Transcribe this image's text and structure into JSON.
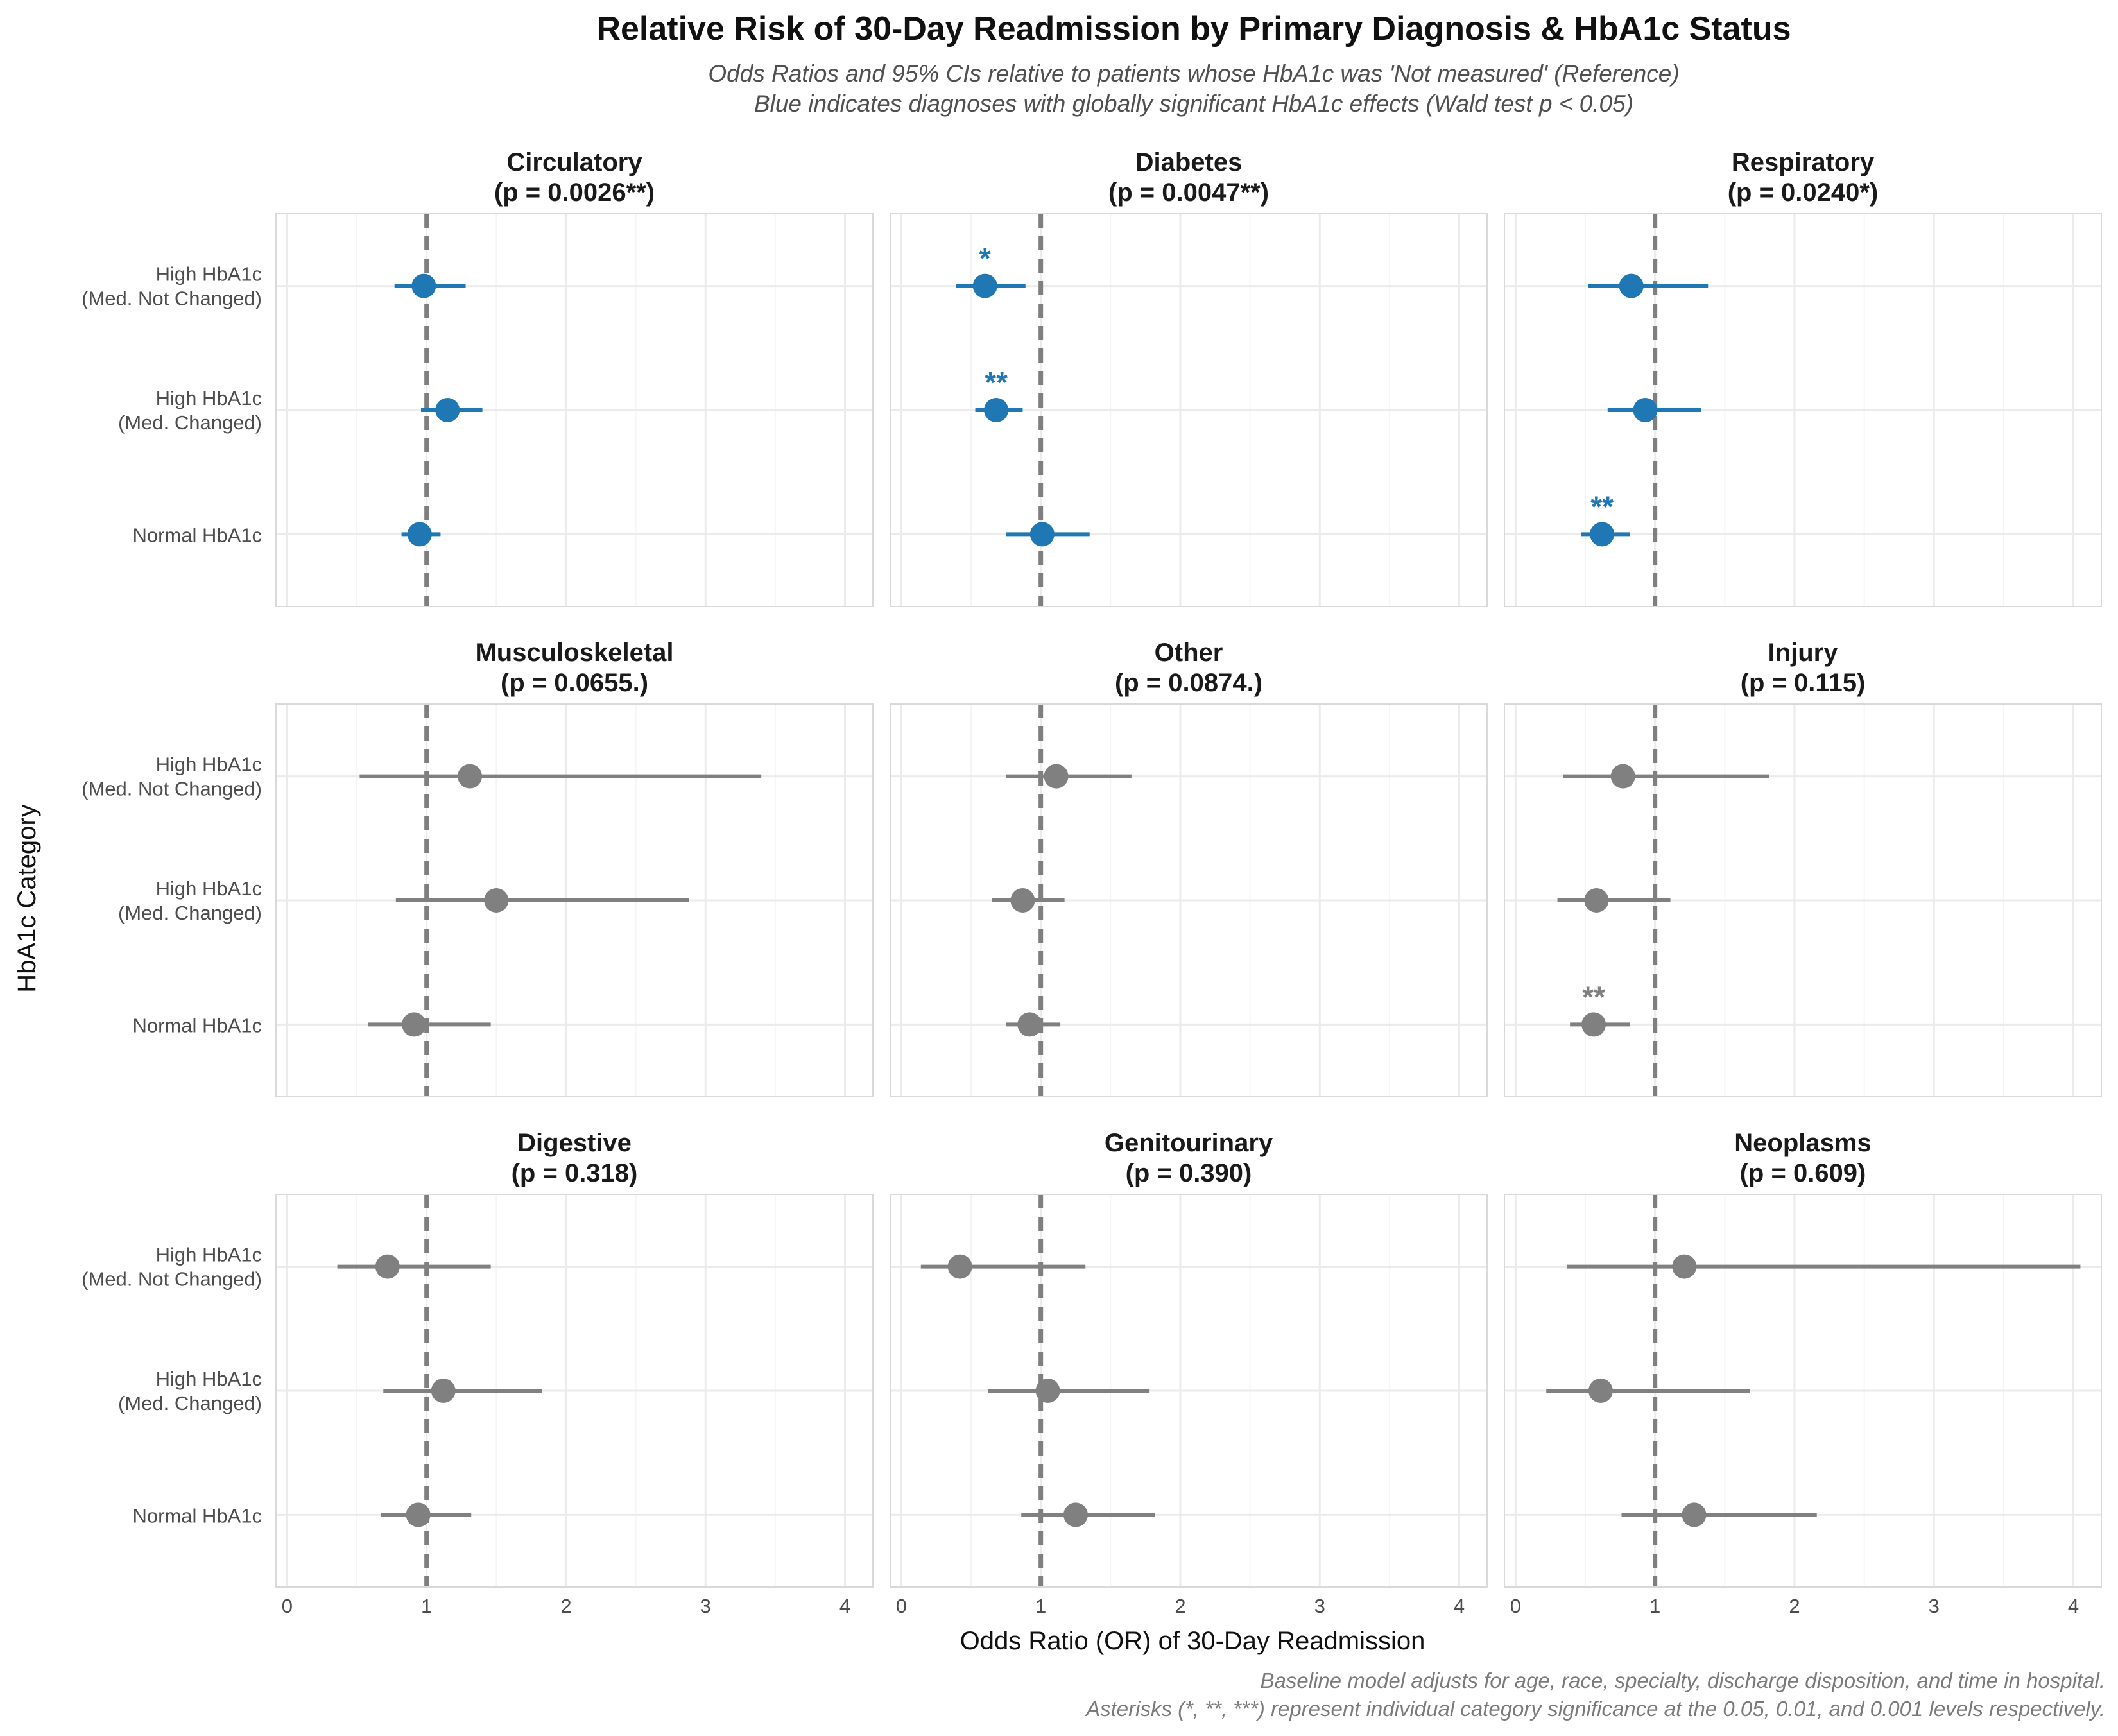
{
  "chart_data": {
    "type": "scatter",
    "title": "Relative Risk of 30-Day Readmission by Primary Diagnosis & HbA1c Status",
    "subtitle_lines": [
      "Odds Ratios and 95% CIs relative to patients whose HbA1c was 'Not measured' (Reference)",
      "Blue indicates diagnoses with globally significant HbA1c effects (Wald test p < 0.05)"
    ],
    "xlabel": "Odds Ratio (OR) of 30-Day Readmission",
    "ylabel": "HbA1c Category",
    "caption_lines": [
      "Baseline model adjusts for age, race, specialty, discharge disposition, and time in hospital.",
      "Asterisks (*, **, ***) represent individual category significance at the 0.05, 0.01, and 0.001 levels respectively."
    ],
    "xlim": [
      -0.08,
      4.2
    ],
    "x_ticks": [
      0,
      1,
      2,
      3,
      4
    ],
    "x_tick_labels": [
      "0",
      "1",
      "2",
      "3",
      "4"
    ],
    "reference_line": 1,
    "grid": true,
    "colors": {
      "significant": "#1f77b4",
      "not_significant": "#808080",
      "reference": "#7f7f7f",
      "grid": "#ebebeb",
      "panel_border": "#d9d9d9"
    },
    "categories": [
      [
        "High HbA1c",
        "(Med. Not Changed)"
      ],
      [
        "High HbA1c",
        "(Med. Changed)"
      ],
      [
        "Normal HbA1c"
      ]
    ],
    "panels": [
      {
        "diagnosis": "Circulatory",
        "p_label": "(p = 0.0026**)",
        "significant": true,
        "points": [
          {
            "or": 0.98,
            "lo": 0.77,
            "hi": 1.28,
            "stars": ""
          },
          {
            "or": 1.15,
            "lo": 0.96,
            "hi": 1.4,
            "stars": ""
          },
          {
            "or": 0.95,
            "lo": 0.82,
            "hi": 1.1,
            "stars": ""
          }
        ]
      },
      {
        "diagnosis": "Diabetes",
        "p_label": "(p = 0.0047**)",
        "significant": true,
        "points": [
          {
            "or": 0.6,
            "lo": 0.39,
            "hi": 0.89,
            "stars": "*"
          },
          {
            "or": 0.68,
            "lo": 0.53,
            "hi": 0.87,
            "stars": "**"
          },
          {
            "or": 1.01,
            "lo": 0.75,
            "hi": 1.35,
            "stars": ""
          }
        ]
      },
      {
        "diagnosis": "Respiratory",
        "p_label": "(p = 0.0240*)",
        "significant": true,
        "points": [
          {
            "or": 0.83,
            "lo": 0.52,
            "hi": 1.38,
            "stars": ""
          },
          {
            "or": 0.93,
            "lo": 0.66,
            "hi": 1.33,
            "stars": ""
          },
          {
            "or": 0.62,
            "lo": 0.47,
            "hi": 0.82,
            "stars": "**"
          }
        ]
      },
      {
        "diagnosis": "Musculoskeletal",
        "p_label": "(p = 0.0655.)",
        "significant": false,
        "points": [
          {
            "or": 1.31,
            "lo": 0.52,
            "hi": 3.4,
            "stars": ""
          },
          {
            "or": 1.5,
            "lo": 0.78,
            "hi": 2.88,
            "stars": ""
          },
          {
            "or": 0.91,
            "lo": 0.58,
            "hi": 1.46,
            "stars": ""
          }
        ]
      },
      {
        "diagnosis": "Other",
        "p_label": "(p = 0.0874.)",
        "significant": false,
        "points": [
          {
            "or": 1.11,
            "lo": 0.75,
            "hi": 1.65,
            "stars": ""
          },
          {
            "or": 0.87,
            "lo": 0.65,
            "hi": 1.17,
            "stars": ""
          },
          {
            "or": 0.92,
            "lo": 0.75,
            "hi": 1.14,
            "stars": ""
          }
        ]
      },
      {
        "diagnosis": "Injury",
        "p_label": "(p = 0.115)",
        "significant": false,
        "points": [
          {
            "or": 0.77,
            "lo": 0.34,
            "hi": 1.82,
            "stars": ""
          },
          {
            "or": 0.58,
            "lo": 0.3,
            "hi": 1.11,
            "stars": ""
          },
          {
            "or": 0.56,
            "lo": 0.39,
            "hi": 0.82,
            "stars": "**"
          }
        ]
      },
      {
        "diagnosis": "Digestive",
        "p_label": "(p = 0.318)",
        "significant": false,
        "points": [
          {
            "or": 0.72,
            "lo": 0.36,
            "hi": 1.46,
            "stars": ""
          },
          {
            "or": 1.12,
            "lo": 0.69,
            "hi": 1.83,
            "stars": ""
          },
          {
            "or": 0.94,
            "lo": 0.67,
            "hi": 1.32,
            "stars": ""
          }
        ]
      },
      {
        "diagnosis": "Genitourinary",
        "p_label": "(p = 0.390)",
        "significant": false,
        "points": [
          {
            "or": 0.42,
            "lo": 0.14,
            "hi": 1.32,
            "stars": ""
          },
          {
            "or": 1.05,
            "lo": 0.62,
            "hi": 1.78,
            "stars": ""
          },
          {
            "or": 1.25,
            "lo": 0.86,
            "hi": 1.82,
            "stars": ""
          }
        ]
      },
      {
        "diagnosis": "Neoplasms",
        "p_label": "(p = 0.609)",
        "significant": false,
        "points": [
          {
            "or": 1.21,
            "lo": 0.37,
            "hi": 4.05,
            "stars": ""
          },
          {
            "or": 0.61,
            "lo": 0.22,
            "hi": 1.68,
            "stars": ""
          },
          {
            "or": 1.28,
            "lo": 0.76,
            "hi": 2.16,
            "stars": ""
          }
        ]
      }
    ]
  }
}
